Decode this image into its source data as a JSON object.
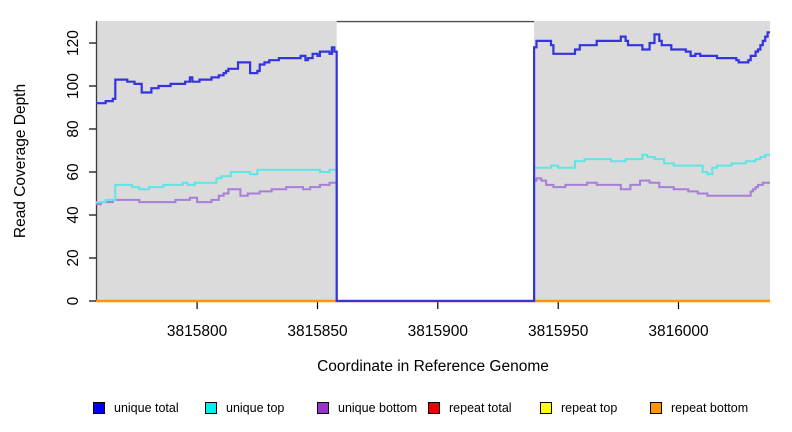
{
  "chart_data": {
    "type": "line",
    "line_style": "step-after",
    "title": "",
    "xlabel": "Coordinate in Reference Genome",
    "ylabel": "Read Coverage Depth",
    "xlim": [
      3815758,
      3816038
    ],
    "ylim": [
      0,
      130
    ],
    "x_ticks": [
      3815800,
      3815850,
      3815900,
      3815950,
      3816000
    ],
    "y_ticks": [
      0,
      20,
      40,
      60,
      80,
      100,
      120
    ],
    "grid": false,
    "panel_background": "#dbdbdb",
    "axis_color": "#3a3a3a",
    "missing_region": {
      "x_start": 3815858,
      "x_end": 3815940,
      "fill": "#ffffff",
      "top_border": "#4f4f4f"
    },
    "legend_position": "bottom",
    "series": [
      {
        "name": "repeat total",
        "color": "#e60000",
        "width": 2,
        "points": [
          [
            3815758,
            0
          ]
        ]
      },
      {
        "name": "repeat top",
        "color": "#ffff00",
        "width": 2,
        "points": [
          [
            3815758,
            0
          ]
        ]
      },
      {
        "name": "repeat bottom",
        "color": "#ff9500",
        "width": 2.4,
        "points": [
          [
            3815758,
            0
          ]
        ]
      },
      {
        "name": "unique bottom",
        "color": "#a77fd8",
        "width": 2,
        "points": [
          [
            3815758,
            45
          ],
          [
            3815760,
            46
          ],
          [
            3815765,
            47
          ],
          [
            3815776,
            46
          ],
          [
            3815791,
            47
          ],
          [
            3815797,
            48
          ],
          [
            3815800,
            46
          ],
          [
            3815806,
            47
          ],
          [
            3815809,
            49
          ],
          [
            3815811,
            50
          ],
          [
            3815813,
            52
          ],
          [
            3815818,
            49
          ],
          [
            3815821,
            50
          ],
          [
            3815826,
            51
          ],
          [
            3815831,
            52
          ],
          [
            3815837,
            53
          ],
          [
            3815844,
            52
          ],
          [
            3815847,
            53
          ],
          [
            3815851,
            54
          ],
          [
            3815855,
            55
          ],
          [
            3815858,
            0
          ],
          [
            3815940,
            56
          ],
          [
            3815941,
            57
          ],
          [
            3815943,
            56
          ],
          [
            3815945,
            54
          ],
          [
            3815948,
            53
          ],
          [
            3815953,
            54
          ],
          [
            3815962,
            55
          ],
          [
            3815966,
            54
          ],
          [
            3815976,
            52
          ],
          [
            3815980,
            54
          ],
          [
            3815984,
            56
          ],
          [
            3815988,
            55
          ],
          [
            3815992,
            53
          ],
          [
            3815998,
            52
          ],
          [
            3816004,
            51
          ],
          [
            3816008,
            50
          ],
          [
            3816012,
            49
          ],
          [
            3816030,
            51
          ],
          [
            3816031,
            52
          ],
          [
            3816032,
            53
          ],
          [
            3816033,
            54
          ],
          [
            3816035,
            55
          ]
        ]
      },
      {
        "name": "unique top",
        "color": "#5fe5e5",
        "width": 2,
        "points": [
          [
            3815758,
            46
          ],
          [
            3815762,
            47
          ],
          [
            3815766,
            54
          ],
          [
            3815773,
            53
          ],
          [
            3815776,
            52
          ],
          [
            3815780,
            53
          ],
          [
            3815786,
            54
          ],
          [
            3815794,
            55
          ],
          [
            3815796,
            54
          ],
          [
            3815799,
            55
          ],
          [
            3815808,
            57
          ],
          [
            3815810,
            58
          ],
          [
            3815814,
            60
          ],
          [
            3815822,
            59
          ],
          [
            3815825,
            61
          ],
          [
            3815851,
            60
          ],
          [
            3815855,
            61
          ],
          [
            3815858,
            0
          ],
          [
            3815940,
            62
          ],
          [
            3815947,
            63
          ],
          [
            3815950,
            62
          ],
          [
            3815957,
            65
          ],
          [
            3815961,
            66
          ],
          [
            3815972,
            65
          ],
          [
            3815978,
            66
          ],
          [
            3815985,
            68
          ],
          [
            3815987,
            67
          ],
          [
            3815990,
            66
          ],
          [
            3815994,
            64
          ],
          [
            3815998,
            63
          ],
          [
            3816010,
            60
          ],
          [
            3816012,
            59
          ],
          [
            3816014,
            62
          ],
          [
            3816016,
            63
          ],
          [
            3816022,
            64
          ],
          [
            3816028,
            65
          ],
          [
            3816032,
            66
          ],
          [
            3816034,
            67
          ],
          [
            3816036,
            68
          ]
        ]
      },
      {
        "name": "unique total",
        "color": "#3434df",
        "width": 2.2,
        "points": [
          [
            3815758,
            92
          ],
          [
            3815762,
            93
          ],
          [
            3815765,
            94
          ],
          [
            3815766,
            103
          ],
          [
            3815771,
            102
          ],
          [
            3815774,
            101
          ],
          [
            3815777,
            97
          ],
          [
            3815781,
            99
          ],
          [
            3815784,
            100
          ],
          [
            3815789,
            101
          ],
          [
            3815795,
            102
          ],
          [
            3815797,
            104
          ],
          [
            3815798,
            102
          ],
          [
            3815801,
            103
          ],
          [
            3815806,
            104
          ],
          [
            3815809,
            105
          ],
          [
            3815811,
            106
          ],
          [
            3815812,
            107
          ],
          [
            3815813,
            108
          ],
          [
            3815817,
            111
          ],
          [
            3815822,
            106
          ],
          [
            3815825,
            107
          ],
          [
            3815826,
            110
          ],
          [
            3815828,
            111
          ],
          [
            3815830,
            112
          ],
          [
            3815834,
            113
          ],
          [
            3815843,
            114
          ],
          [
            3815845,
            112
          ],
          [
            3815846,
            113
          ],
          [
            3815848,
            115
          ],
          [
            3815850,
            114
          ],
          [
            3815851,
            116
          ],
          [
            3815855,
            115
          ],
          [
            3815856,
            118
          ],
          [
            3815857,
            116
          ],
          [
            3815858,
            0
          ],
          [
            3815940,
            118
          ],
          [
            3815941,
            121
          ],
          [
            3815947,
            119
          ],
          [
            3815948,
            115
          ],
          [
            3815957,
            117
          ],
          [
            3815959,
            119
          ],
          [
            3815966,
            121
          ],
          [
            3815976,
            123
          ],
          [
            3815978,
            121
          ],
          [
            3815979,
            119
          ],
          [
            3815985,
            117
          ],
          [
            3815988,
            120
          ],
          [
            3815990,
            124
          ],
          [
            3815992,
            121
          ],
          [
            3815993,
            119
          ],
          [
            3815997,
            117
          ],
          [
            3816003,
            116
          ],
          [
            3816005,
            114
          ],
          [
            3816007,
            115
          ],
          [
            3816009,
            114
          ],
          [
            3816016,
            113
          ],
          [
            3816024,
            112
          ],
          [
            3816025,
            111
          ],
          [
            3816029,
            112
          ],
          [
            3816030,
            114
          ],
          [
            3816032,
            116
          ],
          [
            3816033,
            117
          ],
          [
            3816034,
            119
          ],
          [
            3816035,
            121
          ],
          [
            3816036,
            123
          ],
          [
            3816037,
            125
          ]
        ]
      }
    ],
    "legend": [
      {
        "label": "unique total",
        "swatch": "#0000ee"
      },
      {
        "label": "unique top",
        "swatch": "#00eeee"
      },
      {
        "label": "unique bottom",
        "swatch": "#9933cc"
      },
      {
        "label": "repeat total",
        "swatch": "#ee0000"
      },
      {
        "label": "repeat top",
        "swatch": "#ffff00"
      },
      {
        "label": "repeat bottom",
        "swatch": "#ff9500"
      }
    ]
  }
}
